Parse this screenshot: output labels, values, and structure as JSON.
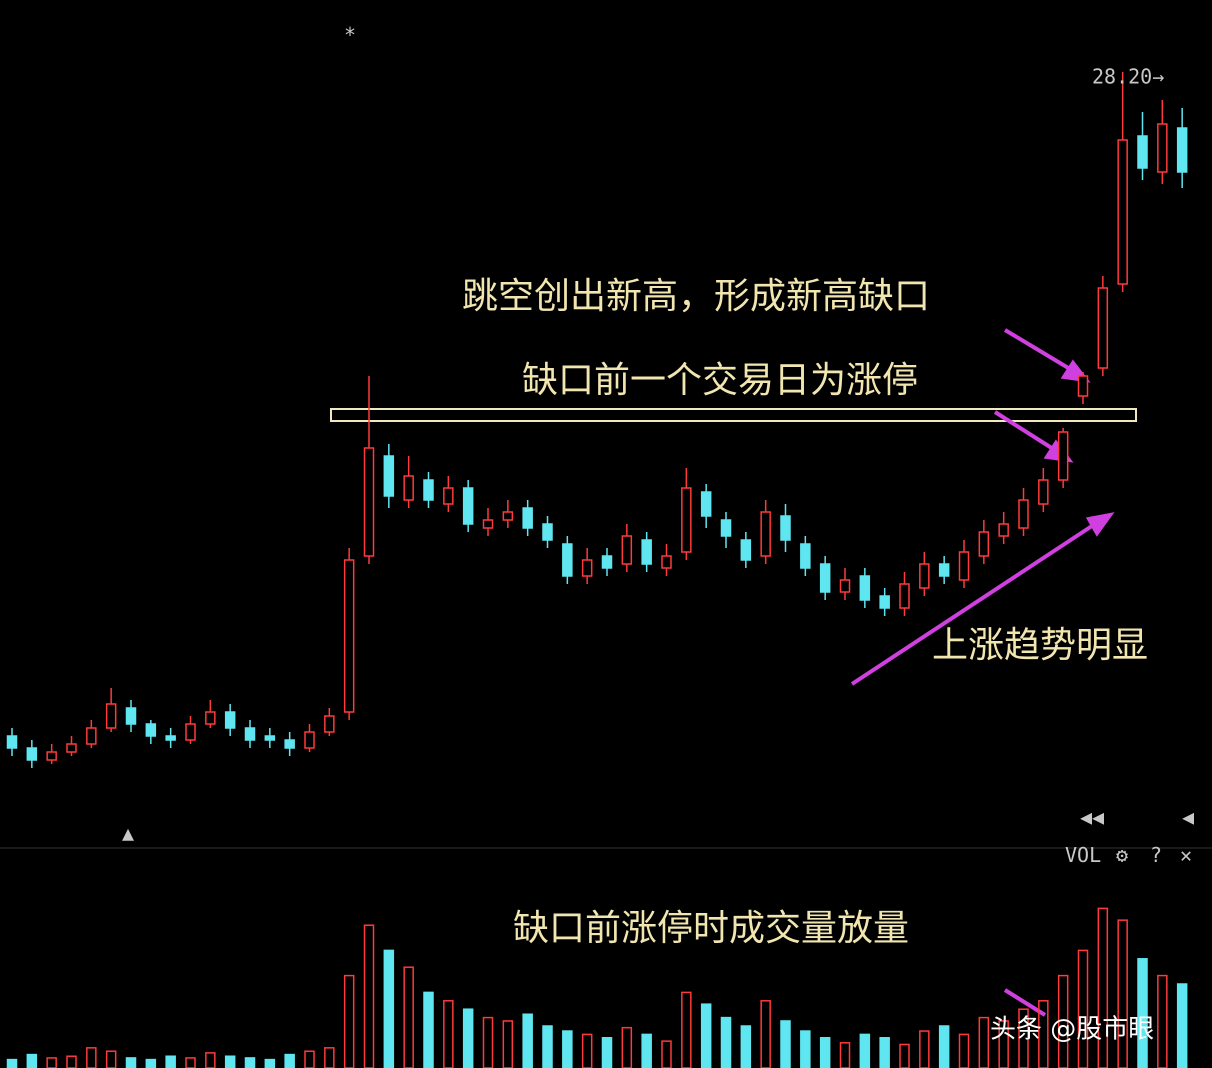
{
  "chart_data": {
    "type": "candlestick",
    "annotations": [
      "跳空创出新高，形成新高缺口",
      "缺口前一个交易日为涨停",
      "上涨趋势明显",
      "缺口前涨停时成交量放量"
    ],
    "high_label": {
      "value": 28.2,
      "label": "28.20→"
    },
    "ylim": [
      9,
      29.5
    ],
    "up_color": "#ff3a3a",
    "down_color": "#5fe6f0",
    "open": [
      11.6,
      11.3,
      11.0,
      11.2,
      11.4,
      11.8,
      12.3,
      11.9,
      11.6,
      11.5,
      11.9,
      12.2,
      11.8,
      11.6,
      11.5,
      11.3,
      11.7,
      12.2,
      16.1,
      18.6,
      17.5,
      18.0,
      17.4,
      17.8,
      16.8,
      17.0,
      17.3,
      16.9,
      16.4,
      15.6,
      16.1,
      15.9,
      16.5,
      15.8,
      16.2,
      17.7,
      17.0,
      16.5,
      16.1,
      17.1,
      16.4,
      15.9,
      15.2,
      15.6,
      15.1,
      14.8,
      15.3,
      15.9,
      15.5,
      16.1,
      16.6,
      16.8,
      17.4,
      18.0,
      20.1,
      20.8,
      22.9,
      26.6,
      25.7,
      26.8
    ],
    "high": [
      11.8,
      11.5,
      11.4,
      11.6,
      12.0,
      12.8,
      12.5,
      12.0,
      11.8,
      12.1,
      12.5,
      12.4,
      12.0,
      11.8,
      11.7,
      11.9,
      12.3,
      16.3,
      20.6,
      18.9,
      18.6,
      18.2,
      18.1,
      18.0,
      17.3,
      17.5,
      17.5,
      17.1,
      16.6,
      16.3,
      16.3,
      16.9,
      16.7,
      16.4,
      18.3,
      17.9,
      17.2,
      16.7,
      17.5,
      17.4,
      16.6,
      16.1,
      15.8,
      15.8,
      15.3,
      15.7,
      16.2,
      16.1,
      16.5,
      17.0,
      17.2,
      17.8,
      18.3,
      19.3,
      20.7,
      23.1,
      28.2,
      27.2,
      27.5,
      27.3
    ],
    "low": [
      11.1,
      10.8,
      10.9,
      11.1,
      11.3,
      11.7,
      11.7,
      11.4,
      11.3,
      11.4,
      11.8,
      11.6,
      11.3,
      11.3,
      11.1,
      11.2,
      11.6,
      12.0,
      15.9,
      17.3,
      17.3,
      17.3,
      17.2,
      16.7,
      16.6,
      16.8,
      16.6,
      16.3,
      15.4,
      15.4,
      15.6,
      15.7,
      15.7,
      15.6,
      16.0,
      16.8,
      16.3,
      15.8,
      15.9,
      16.2,
      15.6,
      15.0,
      15.0,
      14.8,
      14.6,
      14.6,
      15.1,
      15.4,
      15.3,
      15.9,
      16.4,
      16.6,
      17.2,
      17.8,
      19.9,
      20.6,
      22.7,
      25.5,
      25.4,
      25.3
    ],
    "close": [
      11.3,
      11.0,
      11.2,
      11.4,
      11.8,
      12.4,
      11.9,
      11.6,
      11.5,
      11.9,
      12.2,
      11.8,
      11.5,
      11.5,
      11.3,
      11.7,
      12.1,
      16.0,
      18.8,
      17.6,
      18.1,
      17.5,
      17.8,
      16.9,
      17.0,
      17.2,
      16.8,
      16.5,
      15.6,
      16.0,
      15.8,
      16.6,
      15.9,
      16.1,
      17.8,
      17.1,
      16.6,
      16.0,
      17.2,
      16.5,
      15.8,
      15.2,
      15.5,
      15.0,
      14.8,
      15.4,
      15.9,
      15.6,
      16.2,
      16.7,
      16.9,
      17.5,
      18.0,
      19.2,
      20.6,
      22.8,
      26.5,
      25.8,
      26.9,
      25.7
    ],
    "volume_label": "VOL",
    "volume_ylim": [
      0,
      100
    ],
    "volume": [
      5,
      8,
      6,
      7,
      12,
      10,
      6,
      5,
      7,
      6,
      9,
      7,
      6,
      5,
      8,
      10,
      12,
      55,
      85,
      70,
      60,
      45,
      40,
      35,
      30,
      28,
      32,
      25,
      22,
      20,
      18,
      24,
      20,
      16,
      45,
      38,
      30,
      25,
      40,
      28,
      22,
      18,
      15,
      20,
      18,
      14,
      22,
      25,
      20,
      30,
      28,
      35,
      40,
      55,
      70,
      95,
      88,
      65,
      55,
      50
    ]
  },
  "ui": {
    "star": "*",
    "marker": "▲",
    "settings": "⚙",
    "help": "?",
    "close": "✕",
    "nav_left": "◀◀",
    "nav_right": "◀",
    "watermark": "头条 @股市眼"
  }
}
